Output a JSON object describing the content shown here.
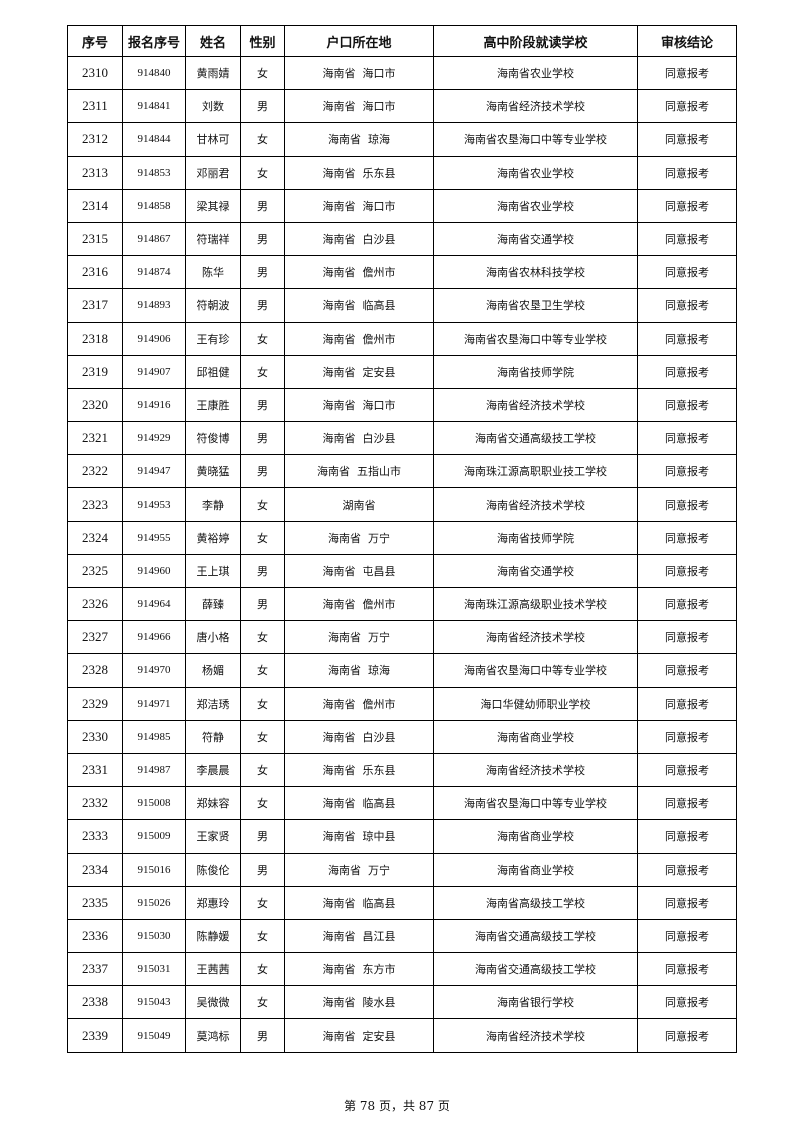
{
  "headers": [
    "序号",
    "报名序号",
    "姓名",
    "性别",
    "户口所在地",
    "高中阶段就读学校",
    "审核结论"
  ],
  "rows": [
    [
      "2310",
      "914840",
      "黄雨婧",
      "女",
      "海南省  海口市",
      "海南省农业学校",
      "同意报考"
    ],
    [
      "2311",
      "914841",
      "刘数",
      "男",
      "海南省  海口市",
      "海南省经济技术学校",
      "同意报考"
    ],
    [
      "2312",
      "914844",
      "甘林可",
      "女",
      "海南省  琼海",
      "海南省农垦海口中等专业学校",
      "同意报考"
    ],
    [
      "2313",
      "914853",
      "邓丽君",
      "女",
      "海南省  乐东县",
      "海南省农业学校",
      "同意报考"
    ],
    [
      "2314",
      "914858",
      "梁其禄",
      "男",
      "海南省  海口市",
      "海南省农业学校",
      "同意报考"
    ],
    [
      "2315",
      "914867",
      "符瑞祥",
      "男",
      "海南省  白沙县",
      "海南省交通学校",
      "同意报考"
    ],
    [
      "2316",
      "914874",
      "陈华",
      "男",
      "海南省  儋州市",
      "海南省农林科技学校",
      "同意报考"
    ],
    [
      "2317",
      "914893",
      "符朝波",
      "男",
      "海南省  临高县",
      "海南省农垦卫生学校",
      "同意报考"
    ],
    [
      "2318",
      "914906",
      "王有珍",
      "女",
      "海南省  儋州市",
      "海南省农垦海口中等专业学校",
      "同意报考"
    ],
    [
      "2319",
      "914907",
      "邱祖健",
      "女",
      "海南省  定安县",
      "海南省技师学院",
      "同意报考"
    ],
    [
      "2320",
      "914916",
      "王康胜",
      "男",
      "海南省  海口市",
      "海南省经济技术学校",
      "同意报考"
    ],
    [
      "2321",
      "914929",
      "符俊博",
      "男",
      "海南省  白沙县",
      "海南省交通高级技工学校",
      "同意报考"
    ],
    [
      "2322",
      "914947",
      "黄晓猛",
      "男",
      "海南省  五指山市",
      "海南珠江源高职职业技工学校",
      "同意报考"
    ],
    [
      "2323",
      "914953",
      "李静",
      "女",
      "湖南省",
      "海南省经济技术学校",
      "同意报考"
    ],
    [
      "2324",
      "914955",
      "黄裕婷",
      "女",
      "海南省  万宁",
      "海南省技师学院",
      "同意报考"
    ],
    [
      "2325",
      "914960",
      "王上琪",
      "男",
      "海南省  屯昌县",
      "海南省交通学校",
      "同意报考"
    ],
    [
      "2326",
      "914964",
      "薛臻",
      "男",
      "海南省  儋州市",
      "海南珠江源高级职业技术学校",
      "同意报考"
    ],
    [
      "2327",
      "914966",
      "唐小格",
      "女",
      "海南省  万宁",
      "海南省经济技术学校",
      "同意报考"
    ],
    [
      "2328",
      "914970",
      "杨媚",
      "女",
      "海南省  琼海",
      "海南省农垦海口中等专业学校",
      "同意报考"
    ],
    [
      "2329",
      "914971",
      "郑洁琇",
      "女",
      "海南省  儋州市",
      "海口华健幼师职业学校",
      "同意报考"
    ],
    [
      "2330",
      "914985",
      "符静",
      "女",
      "海南省  白沙县",
      "海南省商业学校",
      "同意报考"
    ],
    [
      "2331",
      "914987",
      "李晨晨",
      "女",
      "海南省  乐东县",
      "海南省经济技术学校",
      "同意报考"
    ],
    [
      "2332",
      "915008",
      "郑妹容",
      "女",
      "海南省  临高县",
      "海南省农垦海口中等专业学校",
      "同意报考"
    ],
    [
      "2333",
      "915009",
      "王家贤",
      "男",
      "海南省  琼中县",
      "海南省商业学校",
      "同意报考"
    ],
    [
      "2334",
      "915016",
      "陈俊伦",
      "男",
      "海南省  万宁",
      "海南省商业学校",
      "同意报考"
    ],
    [
      "2335",
      "915026",
      "郑惠玲",
      "女",
      "海南省  临高县",
      "海南省高级技工学校",
      "同意报考"
    ],
    [
      "2336",
      "915030",
      "陈静媛",
      "女",
      "海南省  昌江县",
      "海南省交通高级技工学校",
      "同意报考"
    ],
    [
      "2337",
      "915031",
      "王茜茜",
      "女",
      "海南省  东方市",
      "海南省交通高级技工学校",
      "同意报考"
    ],
    [
      "2338",
      "915043",
      "吴微微",
      "女",
      "海南省  陵水县",
      "海南省银行学校",
      "同意报考"
    ],
    [
      "2339",
      "915049",
      "莫鸿标",
      "男",
      "海南省  定安县",
      "海南省经济技术学校",
      "同意报考"
    ]
  ],
  "footer": "第 78 页，共 87 页"
}
